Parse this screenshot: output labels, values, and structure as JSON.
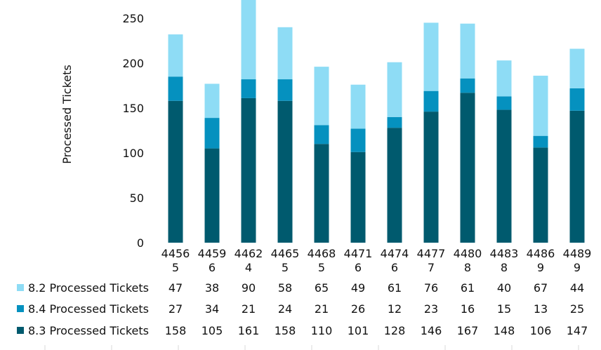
{
  "chart_data": {
    "type": "bar",
    "stacked": true,
    "ylabel": "Processed Tickets",
    "ylim": [
      0,
      250
    ],
    "yticks": [
      0,
      50,
      100,
      150,
      200,
      250
    ],
    "categories": [
      "44565",
      "44596",
      "44624",
      "44655",
      "44685",
      "44716",
      "44746",
      "44777",
      "44808",
      "44838",
      "44869",
      "44899"
    ],
    "category_lines": [
      [
        "4456",
        "5"
      ],
      [
        "4459",
        "6"
      ],
      [
        "4462",
        "4"
      ],
      [
        "4465",
        "5"
      ],
      [
        "4468",
        "5"
      ],
      [
        "4471",
        "6"
      ],
      [
        "4474",
        "6"
      ],
      [
        "4477",
        "7"
      ],
      [
        "4480",
        "8"
      ],
      [
        "4483",
        "8"
      ],
      [
        "4486",
        "9"
      ],
      [
        "4489",
        "9"
      ]
    ],
    "series": [
      {
        "name": "8.3 Processed Tickets",
        "color": "#005a6e",
        "values": [
          158,
          105,
          161,
          158,
          110,
          101,
          128,
          146,
          167,
          148,
          106,
          147
        ]
      },
      {
        "name": "8.4 Processed Tickets",
        "color": "#0591bf",
        "values": [
          27,
          34,
          21,
          24,
          21,
          26,
          12,
          23,
          16,
          15,
          13,
          25
        ]
      },
      {
        "name": "8.2 Processed Tickets",
        "color": "#8edcf5",
        "values": [
          47,
          38,
          90,
          58,
          65,
          49,
          61,
          76,
          61,
          40,
          67,
          44
        ]
      }
    ],
    "table_order": [
      2,
      1,
      0
    ],
    "grid": false,
    "legend": "data-table"
  }
}
